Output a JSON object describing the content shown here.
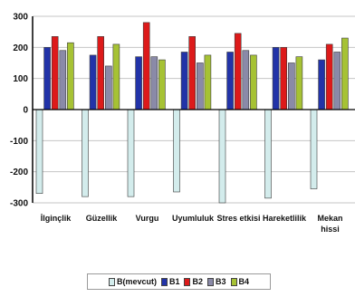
{
  "chart_data": {
    "type": "bar",
    "title": "",
    "xlabel": "",
    "ylabel": "",
    "ylim": [
      -300,
      300
    ],
    "yticks": [
      -300,
      -200,
      -100,
      0,
      100,
      200,
      300
    ],
    "grid": true,
    "legend_position": "bottom",
    "categories": [
      [
        "İlginçlik"
      ],
      [
        "Güzellik"
      ],
      [
        "Vurgu"
      ],
      [
        "Uyumluluk"
      ],
      [
        "Stres etkisi"
      ],
      [
        "Hareketlilik"
      ],
      [
        "Mekan",
        "hissi"
      ]
    ],
    "series": [
      {
        "name": "B(mevcut)",
        "color": "#d3ecec",
        "values": [
          -270,
          -280,
          -280,
          -265,
          -300,
          -285,
          -255
        ]
      },
      {
        "name": "B1",
        "color": "#2233a8",
        "values": [
          200,
          175,
          170,
          185,
          185,
          200,
          160
        ]
      },
      {
        "name": "B2",
        "color": "#dd1a1a",
        "values": [
          235,
          235,
          280,
          235,
          245,
          200,
          210
        ]
      },
      {
        "name": "B3",
        "color": "#8a8aa8",
        "values": [
          190,
          140,
          170,
          150,
          190,
          150,
          185
        ]
      },
      {
        "name": "B4",
        "color": "#a6c234",
        "values": [
          215,
          210,
          160,
          175,
          175,
          170,
          230
        ]
      }
    ]
  }
}
